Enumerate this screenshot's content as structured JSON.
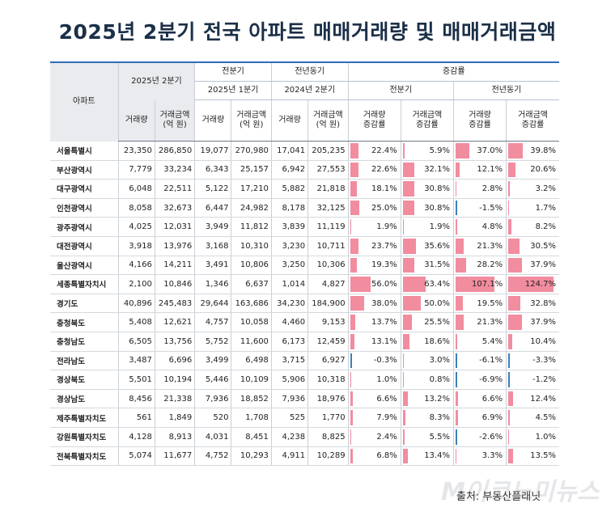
{
  "title": "2025년 2분기 전국 아파트 매매거래량 및 매매거래금액",
  "header": {
    "corner": "아파트",
    "q2_2025": "2025년 2분기",
    "prev_quarter": "전분기",
    "prev_year": "전년동기",
    "change": "증감률",
    "q1_2025": "2025년 1분기",
    "q2_2024": "2024년 2분기",
    "change_prev_quarter": "전분기",
    "change_prev_year": "전년동기",
    "volume": "거래량",
    "amount": "거래금액\n(억 원)",
    "volume_rate": "거래량\n증감률",
    "amount_rate": "거래금액\n증감률"
  },
  "rows": [
    {
      "name": "서울특별시",
      "v25q2": "23,350",
      "a25q2": "286,850",
      "v25q1": "19,077",
      "a25q1": "270,980",
      "v24q2": "17,041",
      "a24q2": "205,235",
      "r1": "22.4%",
      "r2": "5.9%",
      "r3": "37.0%",
      "r4": "39.8%",
      "b": [
        22.4,
        5.9,
        37.0,
        39.8
      ]
    },
    {
      "name": "부산광역시",
      "v25q2": "7,779",
      "a25q2": "33,234",
      "v25q1": "6,343",
      "a25q1": "25,157",
      "v24q2": "6,942",
      "a24q2": "27,553",
      "r1": "22.6%",
      "r2": "32.1%",
      "r3": "12.1%",
      "r4": "20.6%",
      "b": [
        22.6,
        32.1,
        12.1,
        20.6
      ]
    },
    {
      "name": "대구광역시",
      "v25q2": "6,048",
      "a25q2": "22,511",
      "v25q1": "5,122",
      "a25q1": "17,210",
      "v24q2": "5,882",
      "a24q2": "21,818",
      "r1": "18.1%",
      "r2": "30.8%",
      "r3": "2.8%",
      "r4": "3.2%",
      "b": [
        18.1,
        30.8,
        2.8,
        3.2
      ]
    },
    {
      "name": "인천광역시",
      "v25q2": "8,058",
      "a25q2": "32,673",
      "v25q1": "6,447",
      "a25q1": "24,982",
      "v24q2": "8,178",
      "a24q2": "32,125",
      "r1": "25.0%",
      "r2": "30.8%",
      "r3": "-1.5%",
      "r4": "1.7%",
      "b": [
        25.0,
        30.8,
        -1.5,
        1.7
      ]
    },
    {
      "name": "광주광역시",
      "v25q2": "4,025",
      "a25q2": "12,031",
      "v25q1": "3,949",
      "a25q1": "11,812",
      "v24q2": "3,839",
      "a24q2": "11,119",
      "r1": "1.9%",
      "r2": "1.9%",
      "r3": "4.8%",
      "r4": "8.2%",
      "b": [
        1.9,
        1.9,
        4.8,
        8.2
      ]
    },
    {
      "name": "대전광역시",
      "v25q2": "3,918",
      "a25q2": "13,976",
      "v25q1": "3,168",
      "a25q1": "10,310",
      "v24q2": "3,230",
      "a24q2": "10,711",
      "r1": "23.7%",
      "r2": "35.6%",
      "r3": "21.3%",
      "r4": "30.5%",
      "b": [
        23.7,
        35.6,
        21.3,
        30.5
      ]
    },
    {
      "name": "울산광역시",
      "v25q2": "4,166",
      "a25q2": "14,211",
      "v25q1": "3,491",
      "a25q1": "10,806",
      "v24q2": "3,250",
      "a24q2": "10,306",
      "r1": "19.3%",
      "r2": "31.5%",
      "r3": "28.2%",
      "r4": "37.9%",
      "b": [
        19.3,
        31.5,
        28.2,
        37.9
      ]
    },
    {
      "name": "세종특별자치시",
      "v25q2": "2,100",
      "a25q2": "10,846",
      "v25q1": "1,346",
      "a25q1": "6,637",
      "v24q2": "1,014",
      "a24q2": "4,827",
      "r1": "56.0%",
      "r2": "63.4%",
      "r3": "107.1%",
      "r4": "124.7%",
      "b": [
        56.0,
        63.4,
        107.1,
        124.7
      ]
    },
    {
      "name": "경기도",
      "v25q2": "40,896",
      "a25q2": "245,483",
      "v25q1": "29,644",
      "a25q1": "163,686",
      "v24q2": "34,230",
      "a24q2": "184,900",
      "r1": "38.0%",
      "r2": "50.0%",
      "r3": "19.5%",
      "r4": "32.8%",
      "b": [
        38.0,
        50.0,
        19.5,
        32.8
      ]
    },
    {
      "name": "충청북도",
      "v25q2": "5,408",
      "a25q2": "12,621",
      "v25q1": "4,757",
      "a25q1": "10,058",
      "v24q2": "4,460",
      "a24q2": "9,153",
      "r1": "13.7%",
      "r2": "25.5%",
      "r3": "21.3%",
      "r4": "37.9%",
      "b": [
        13.7,
        25.5,
        21.3,
        37.9
      ]
    },
    {
      "name": "충청남도",
      "v25q2": "6,505",
      "a25q2": "13,756",
      "v25q1": "5,752",
      "a25q1": "11,600",
      "v24q2": "6,173",
      "a24q2": "12,459",
      "r1": "13.1%",
      "r2": "18.6%",
      "r3": "5.4%",
      "r4": "10.4%",
      "b": [
        13.1,
        18.6,
        5.4,
        10.4
      ]
    },
    {
      "name": "전라남도",
      "v25q2": "3,487",
      "a25q2": "6,696",
      "v25q1": "3,499",
      "a25q1": "6,498",
      "v24q2": "3,715",
      "a24q2": "6,927",
      "r1": "-0.3%",
      "r2": "3.0%",
      "r3": "-6.1%",
      "r4": "-3.3%",
      "b": [
        -0.3,
        3.0,
        -6.1,
        -3.3
      ]
    },
    {
      "name": "경상북도",
      "v25q2": "5,501",
      "a25q2": "10,194",
      "v25q1": "5,446",
      "a25q1": "10,109",
      "v24q2": "5,906",
      "a24q2": "10,318",
      "r1": "1.0%",
      "r2": "0.8%",
      "r3": "-6.9%",
      "r4": "-1.2%",
      "b": [
        1.0,
        0.8,
        -6.9,
        -1.2
      ]
    },
    {
      "name": "경상남도",
      "v25q2": "8,456",
      "a25q2": "21,338",
      "v25q1": "7,936",
      "a25q1": "18,852",
      "v24q2": "7,936",
      "a24q2": "18,976",
      "r1": "6.6%",
      "r2": "13.2%",
      "r3": "6.6%",
      "r4": "12.4%",
      "b": [
        6.6,
        13.2,
        6.6,
        12.4
      ]
    },
    {
      "name": "제주특별자치도",
      "v25q2": "561",
      "a25q2": "1,849",
      "v25q1": "520",
      "a25q1": "1,708",
      "v24q2": "525",
      "a24q2": "1,770",
      "r1": "7.9%",
      "r2": "8.3%",
      "r3": "6.9%",
      "r4": "4.5%",
      "b": [
        7.9,
        8.3,
        6.9,
        4.5
      ]
    },
    {
      "name": "강원특별자치도",
      "v25q2": "4,128",
      "a25q2": "8,913",
      "v25q1": "4,031",
      "a25q1": "8,451",
      "v24q2": "4,238",
      "a24q2": "8,825",
      "r1": "2.4%",
      "r2": "5.5%",
      "r3": "-2.6%",
      "r4": "1.0%",
      "b": [
        2.4,
        5.5,
        -2.6,
        1.0
      ]
    },
    {
      "name": "전북특별자치도",
      "v25q2": "5,074",
      "a25q2": "11,677",
      "v25q1": "4,752",
      "a25q1": "10,293",
      "v24q2": "4,911",
      "a24q2": "10,289",
      "r1": "6.8%",
      "r2": "13.4%",
      "r3": "3.3%",
      "r4": "13.5%",
      "b": [
        6.8,
        13.4,
        3.3,
        13.5
      ]
    }
  ],
  "source": "출처: 부동산플래닛",
  "watermark": "M이코노미뉴스"
}
